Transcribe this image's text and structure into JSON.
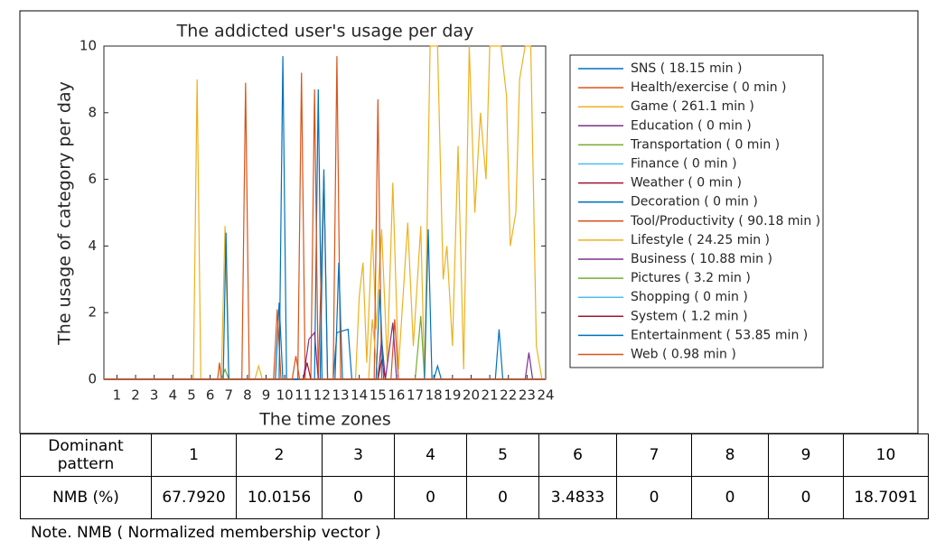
{
  "chart_data": {
    "type": "line",
    "title": "The addicted user's usage per day",
    "x_label": "The time zones",
    "y_label": "The usage of category per day",
    "xlim": [
      0.3,
      24
    ],
    "ylim": [
      0,
      10
    ],
    "xticks": [
      1,
      2,
      3,
      4,
      5,
      6,
      7,
      8,
      9,
      10,
      11,
      12,
      13,
      14,
      15,
      16,
      17,
      18,
      19,
      20,
      21,
      22,
      23,
      24
    ],
    "yticks": [
      0,
      2,
      4,
      6,
      8,
      10
    ],
    "series": [
      {
        "name": "SNS ( 18.15 min )",
        "color": "#0072BD",
        "x": [
          0.3,
          9.5,
          9.7,
          9.9,
          11.6,
          11.8,
          12.0,
          12.6,
          12.8,
          13.4,
          13.6,
          18.0,
          18.2,
          18.4,
          24
        ],
        "values": [
          0,
          0,
          2.3,
          0,
          0,
          8.7,
          0,
          0,
          1.4,
          1.5,
          0,
          0,
          0.4,
          0,
          0
        ]
      },
      {
        "name": "Health/exercise ( 0 min )",
        "color": "#D95319",
        "x": [
          0.3,
          24
        ],
        "values": [
          0,
          0
        ]
      },
      {
        "name": "Game ( 261.1 min )",
        "color": "#EDB120",
        "x": [
          0.3,
          5.1,
          5.3,
          5.5,
          6.6,
          6.8,
          7.0,
          13.8,
          14.0,
          14.2,
          14.4,
          14.7,
          14.9,
          15.2,
          15.5,
          15.8,
          16.1,
          16.6,
          16.9,
          17.3,
          17.5,
          17.8,
          18.2,
          18.5,
          18.7,
          19.0,
          19.3,
          19.6,
          19.9,
          20.2,
          20.5,
          20.8,
          21.0,
          21.3,
          21.6,
          21.9,
          22.1,
          22.4,
          22.6,
          22.9,
          23.2,
          23.5,
          23.8,
          24
        ],
        "values": [
          0,
          0,
          9.0,
          0,
          0,
          4.6,
          0,
          0,
          2.5,
          3.5,
          0.5,
          4.5,
          1.5,
          4.5,
          0.5,
          5.9,
          0.3,
          4.7,
          1.0,
          4.6,
          0,
          10,
          10,
          3,
          4,
          1,
          7,
          0.3,
          10,
          5,
          8,
          6,
          10,
          10,
          10,
          8.5,
          4,
          5,
          9,
          10,
          10,
          1,
          0,
          0
        ]
      },
      {
        "name": "Education ( 0 min )",
        "color": "#7E2F8E",
        "x": [
          0.3,
          24
        ],
        "values": [
          0,
          0
        ]
      },
      {
        "name": "Transportation ( 0 min )",
        "color": "#77AC30",
        "x": [
          0.3,
          24
        ],
        "values": [
          0,
          0
        ]
      },
      {
        "name": "Finance ( 0 min )",
        "color": "#4DBEEE",
        "x": [
          0.3,
          24
        ],
        "values": [
          0,
          0
        ]
      },
      {
        "name": "Weather ( 0 min )",
        "color": "#A2142F",
        "x": [
          0.3,
          24
        ],
        "values": [
          0,
          0
        ]
      },
      {
        "name": "Decoration ( 0 min )",
        "color": "#0072BD",
        "x": [
          0.3,
          24
        ],
        "values": [
          0,
          0
        ]
      },
      {
        "name": "Tool/Productivity ( 90.18 min )",
        "color": "#D95319",
        "x": [
          0.3,
          6.4,
          6.5,
          6.6,
          7.7,
          7.9,
          8.1,
          9.4,
          9.6,
          9.8,
          10.7,
          10.9,
          11.1,
          11.4,
          11.6,
          11.8,
          12.1,
          12.3,
          12.6,
          12.8,
          13.0,
          14.8,
          15.0,
          15.2,
          15.7,
          15.9,
          16.1,
          24
        ],
        "values": [
          0,
          0,
          0.5,
          0,
          0,
          8.9,
          0,
          0,
          2.1,
          0,
          0,
          9.2,
          0,
          0,
          8.7,
          0,
          6.1,
          0,
          0,
          9.7,
          0,
          0,
          8.4,
          0,
          0,
          1.8,
          0,
          0
        ]
      },
      {
        "name": "Lifestyle ( 24.25 min )",
        "color": "#EDB120",
        "x": [
          0.3,
          8.4,
          8.6,
          8.8,
          14.5,
          14.7,
          15.0,
          24
        ],
        "values": [
          0,
          0,
          0.4,
          0,
          0,
          1.8,
          0,
          0
        ]
      },
      {
        "name": "Business ( 10.88 min )",
        "color": "#7E2F8E",
        "x": [
          0.3,
          11.0,
          11.3,
          11.6,
          11.8,
          15.0,
          15.2,
          15.4,
          15.8,
          16.0,
          22.9,
          23.1,
          23.3,
          24
        ],
        "values": [
          0,
          0,
          1.2,
          1.4,
          0,
          0,
          1.2,
          0,
          1.7,
          0,
          0,
          0.8,
          0,
          0
        ]
      },
      {
        "name": "Pictures ( 3.2 min )",
        "color": "#77AC30",
        "x": [
          0.3,
          6.6,
          6.8,
          7.0,
          17.0,
          17.3,
          17.5,
          24
        ],
        "values": [
          0,
          0,
          0.3,
          0,
          0,
          1.9,
          0,
          0
        ]
      },
      {
        "name": "Shopping ( 0 min )",
        "color": "#4DBEEE",
        "x": [
          0.3,
          24
        ],
        "values": [
          0,
          0
        ]
      },
      {
        "name": "System ( 1.2 min )",
        "color": "#A2142F",
        "x": [
          0.3,
          11.0,
          11.2,
          11.4,
          15.0,
          15.2,
          15.4,
          24
        ],
        "values": [
          0,
          0,
          0.5,
          0,
          0,
          0.6,
          0,
          0
        ]
      },
      {
        "name": "Entertainment ( 53.85 min )",
        "color": "#0072BD",
        "x": [
          0.3,
          6.7,
          6.85,
          7.0,
          9.7,
          9.9,
          10.1,
          11.9,
          12.1,
          12.3,
          12.7,
          12.9,
          13.1,
          14.9,
          15.1,
          15.3,
          17.5,
          17.7,
          17.9,
          21.3,
          21.5,
          21.7,
          24
        ],
        "values": [
          0,
          0,
          4.4,
          0,
          0,
          9.7,
          0,
          0,
          6.3,
          0,
          0,
          3.5,
          0,
          0,
          2.7,
          0,
          0,
          4.5,
          0,
          0,
          1.5,
          0,
          0
        ]
      },
      {
        "name": "Web ( 0.98 min )",
        "color": "#D95319",
        "x": [
          0.3,
          10.4,
          10.6,
          10.8,
          24
        ],
        "values": [
          0,
          0,
          0.7,
          0,
          0
        ]
      }
    ]
  },
  "table": {
    "header": [
      "Dominant pattern",
      "1",
      "2",
      "3",
      "4",
      "5",
      "6",
      "7",
      "8",
      "9",
      "10"
    ],
    "rows": [
      [
        "NMB (%)",
        "67.7920",
        "10.0156",
        "0",
        "0",
        "0",
        "3.4833",
        "0",
        "0",
        "0",
        "18.7091"
      ]
    ]
  },
  "note": "Note. NMB ( Normalized membership vector )"
}
